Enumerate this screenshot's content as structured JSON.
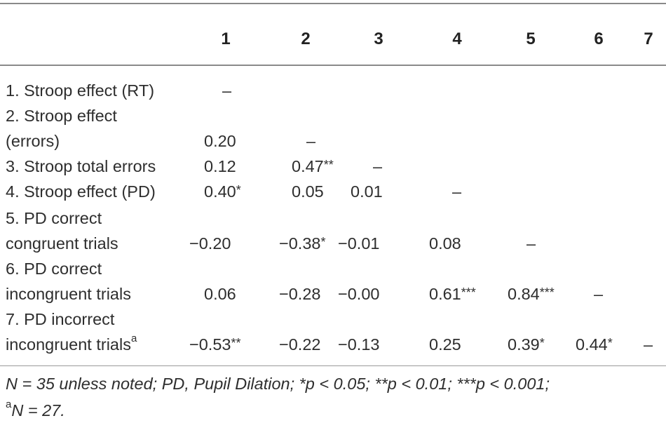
{
  "table": {
    "columns": [
      "1",
      "2",
      "3",
      "4",
      "5",
      "6",
      "7"
    ],
    "rows": [
      {
        "label_lines": [
          "1. Stroop effect (RT)"
        ],
        "cells": [
          "–",
          "",
          "",
          "",
          "",
          "",
          ""
        ]
      },
      {
        "label_lines": [
          "2. Stroop effect",
          "(errors)"
        ],
        "cells": [
          "0.20",
          "–",
          "",
          "",
          "",
          "",
          ""
        ]
      },
      {
        "label_lines": [
          "3. Stroop total errors"
        ],
        "cells": [
          "0.12",
          "0.47",
          "–",
          "",
          "",
          "",
          ""
        ],
        "stars": [
          "",
          "**",
          "",
          "",
          "",
          "",
          ""
        ]
      },
      {
        "label_lines": [
          "4. Stroop effect (PD)"
        ],
        "cells": [
          "0.40",
          "0.05",
          "0.01",
          "–",
          "",
          "",
          ""
        ],
        "stars": [
          "*",
          "",
          "",
          "",
          "",
          "",
          ""
        ]
      },
      {
        "label_lines": [
          "5. PD correct",
          "congruent trials"
        ],
        "cells": [
          "−0.20",
          "−0.38",
          "−0.01",
          "0.08",
          "–",
          "",
          ""
        ],
        "stars": [
          "",
          "*",
          "",
          "",
          "",
          "",
          ""
        ]
      },
      {
        "label_lines": [
          "6. PD correct",
          "incongruent trials"
        ],
        "cells": [
          "0.06",
          "−0.28",
          "−0.00",
          "0.61",
          "0.84",
          "–",
          ""
        ],
        "stars": [
          "",
          "",
          "",
          "***",
          "***",
          "",
          ""
        ]
      },
      {
        "label_lines": [
          "7. PD incorrect",
          "incongruent trials"
        ],
        "label_sup": "a",
        "cells": [
          "−0.53",
          "−0.22",
          "−0.13",
          "0.25",
          "0.39",
          "0.44",
          "–"
        ],
        "stars": [
          "**",
          "",
          "",
          "",
          "*",
          "*",
          ""
        ]
      }
    ]
  },
  "footnote": {
    "line1": "N = 35 unless noted; PD, Pupil Dilation; *p < 0.05; **p < 0.01; ***p < 0.001;",
    "line2_sup": "a",
    "line2": "N = 27."
  }
}
